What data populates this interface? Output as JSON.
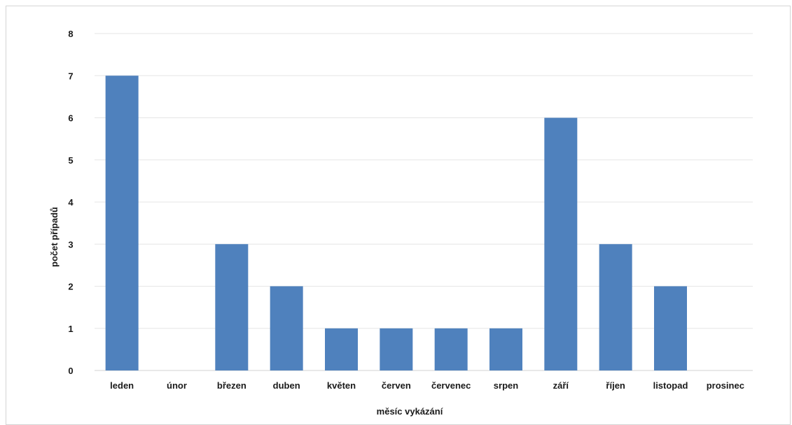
{
  "chart_data": {
    "type": "bar",
    "categories": [
      "leden",
      "únor",
      "březen",
      "duben",
      "květen",
      "červen",
      "červenec",
      "srpen",
      "září",
      "říjen",
      "listopad",
      "prosinec"
    ],
    "values": [
      7,
      0,
      3,
      2,
      1,
      1,
      1,
      1,
      6,
      3,
      2,
      0
    ],
    "xlabel": "měsíc vykázání",
    "ylabel": "počet případů",
    "ylim": [
      0,
      8
    ],
    "yticks": [
      0,
      1,
      2,
      3,
      4,
      5,
      6,
      7,
      8
    ],
    "grid": true,
    "bar_color": "#4f81bd",
    "grid_color": "#e6e6e6"
  }
}
